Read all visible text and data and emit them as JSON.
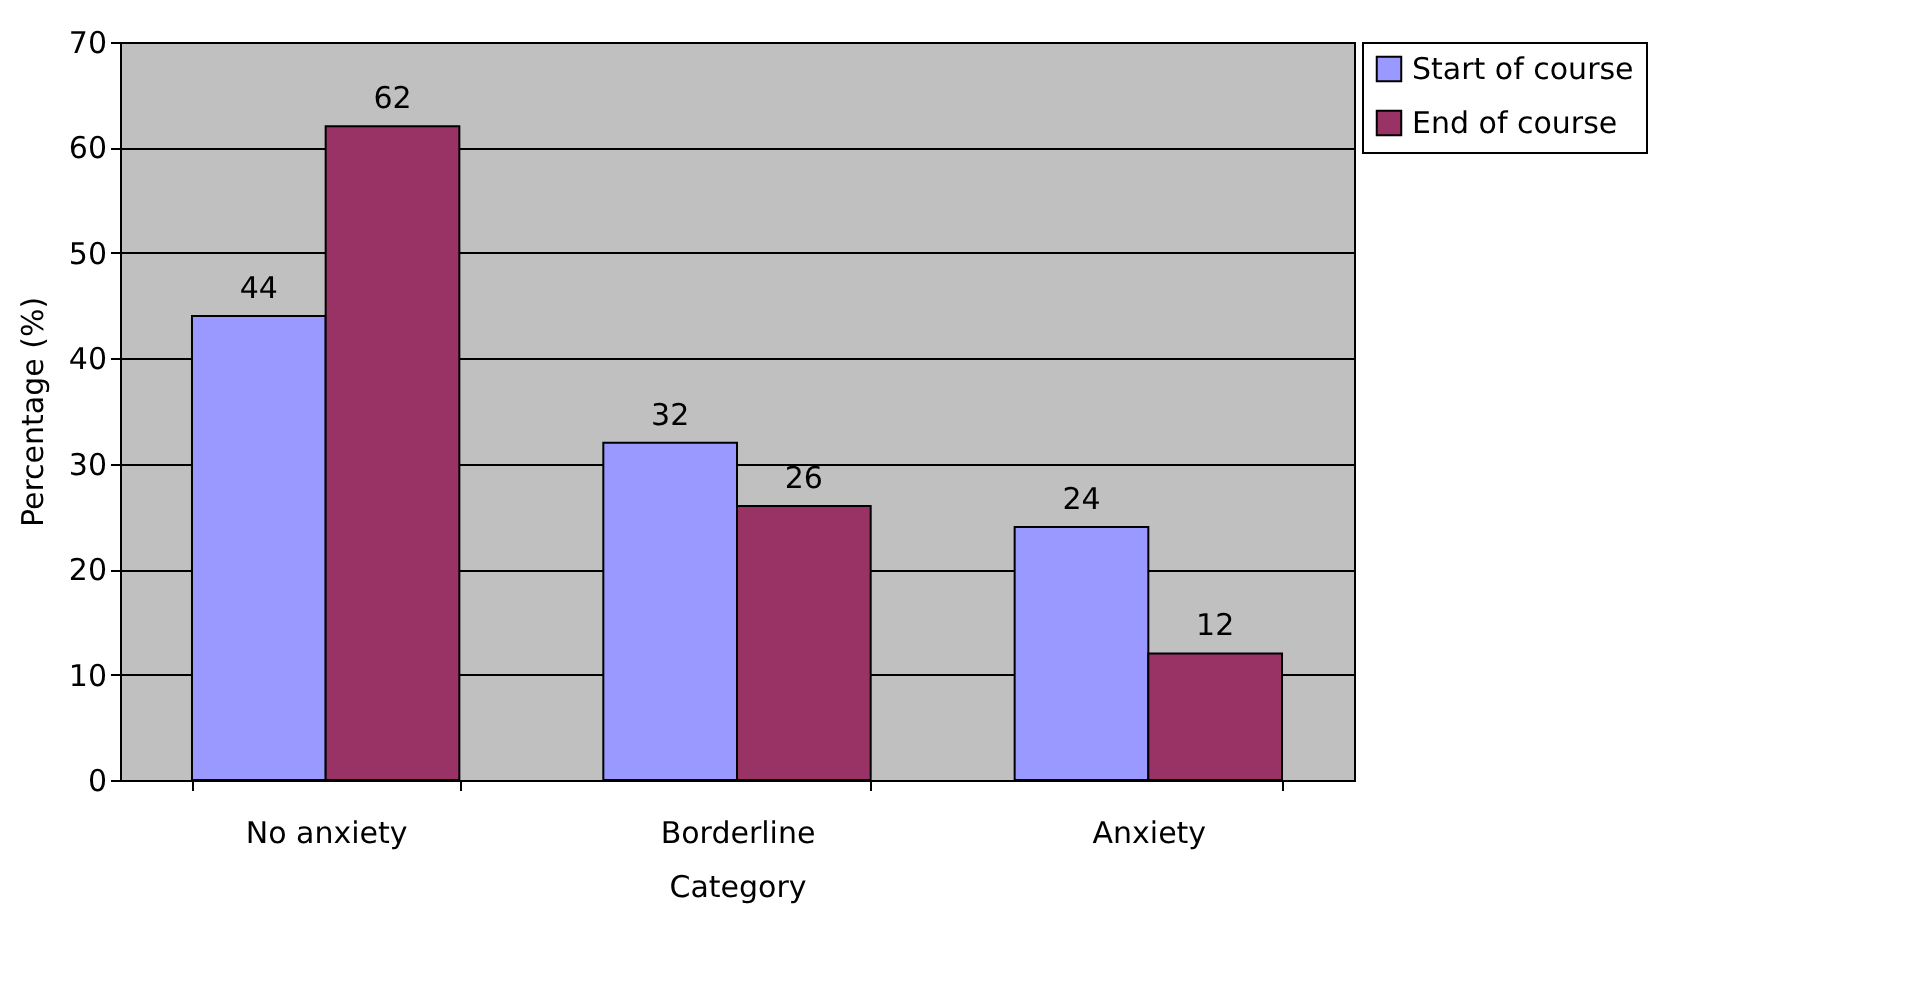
{
  "chart_data": {
    "type": "bar",
    "xlabel": "Category",
    "ylabel": "Percentage (%)",
    "categories": [
      "No anxiety",
      "Borderline",
      "Anxiety"
    ],
    "series": [
      {
        "name": "Start of course",
        "color": "#9999ff",
        "values": [
          44,
          32,
          24
        ]
      },
      {
        "name": "End of course",
        "color": "#993366",
        "values": [
          62,
          26,
          12
        ]
      }
    ],
    "ylim": [
      0,
      70
    ],
    "yticks": [
      0,
      10,
      20,
      30,
      40,
      50,
      60,
      70
    ],
    "grid": "y",
    "legend": "right",
    "data_labels": true
  }
}
